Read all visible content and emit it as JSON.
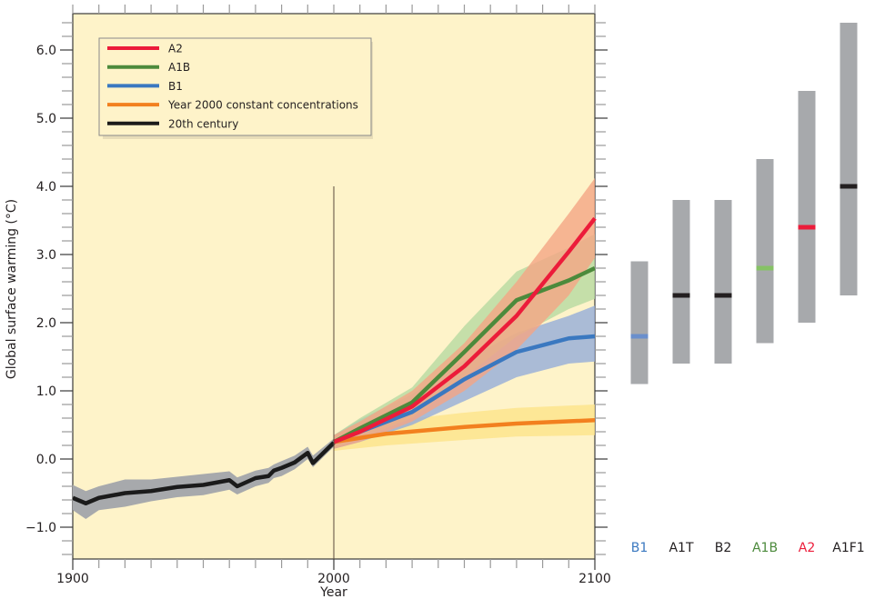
{
  "chart_data": [
    {
      "type": "line",
      "xlabel": "Year",
      "ylabel": "Global surface warming (°C)",
      "xlim": [
        1900,
        2100
      ],
      "ylim": [
        -1.47,
        6.53
      ],
      "x_ticks": [
        1900,
        2000,
        2100
      ],
      "x_tick_labels": [
        "1900",
        "2000",
        "2100"
      ],
      "y_ticks": [
        -1.0,
        0.0,
        1.0,
        2.0,
        3.0,
        4.0,
        5.0,
        6.0
      ],
      "y_tick_labels": [
        "−1.0",
        "0.0",
        "1.0",
        "2.0",
        "3.0",
        "4.0",
        "5.0",
        "6.0"
      ],
      "grid": false,
      "background": "#fef3c9",
      "legend_position": "top-left",
      "vertical_marker_year": 2000,
      "series": [
        {
          "name": "A2",
          "color": "#ec1c3a",
          "band_color": "#f4a585",
          "x": [
            2000,
            2010,
            2030,
            2050,
            2070,
            2090,
            2100
          ],
          "y": [
            0.25,
            0.4,
            0.77,
            1.36,
            2.1,
            3.04,
            3.53
          ],
          "lower": [
            0.15,
            0.25,
            0.55,
            1.0,
            1.6,
            2.4,
            2.95
          ],
          "upper": [
            0.35,
            0.55,
            1.0,
            1.7,
            2.6,
            3.6,
            4.12
          ]
        },
        {
          "name": "A1B",
          "color": "#4c8a3c",
          "band_color": "#b6d9a1",
          "x": [
            2000,
            2010,
            2030,
            2050,
            2070,
            2090,
            2100
          ],
          "y": [
            0.25,
            0.45,
            0.83,
            1.57,
            2.33,
            2.62,
            2.8
          ],
          "lower": [
            0.15,
            0.3,
            0.6,
            1.2,
            1.8,
            2.2,
            2.35
          ],
          "upper": [
            0.35,
            0.6,
            1.05,
            1.95,
            2.75,
            3.1,
            3.3
          ]
        },
        {
          "name": "B1",
          "color": "#3a78c0",
          "band_color": "#95acd9",
          "x": [
            2000,
            2010,
            2030,
            2050,
            2070,
            2090,
            2100
          ],
          "y": [
            0.25,
            0.4,
            0.69,
            1.17,
            1.57,
            1.77,
            1.8
          ],
          "lower": [
            0.15,
            0.25,
            0.5,
            0.85,
            1.2,
            1.4,
            1.43
          ],
          "upper": [
            0.35,
            0.58,
            0.95,
            1.45,
            1.85,
            2.1,
            2.25
          ]
        },
        {
          "name": "Year 2000 constant concentrations",
          "color": "#f2801f",
          "band_color": "#fde38a",
          "x": [
            2000,
            2020,
            2050,
            2070,
            2100
          ],
          "y": [
            0.25,
            0.37,
            0.47,
            0.52,
            0.57
          ],
          "lower": [
            0.12,
            0.2,
            0.28,
            0.33,
            0.35
          ],
          "upper": [
            0.35,
            0.55,
            0.68,
            0.75,
            0.8
          ]
        },
        {
          "name": "20th century",
          "color": "#1b1b1b",
          "band_color": "#a7a9ac",
          "x": [
            1900,
            1905,
            1910,
            1920,
            1930,
            1940,
            1950,
            1960,
            1963,
            1970,
            1975,
            1977,
            1980,
            1985,
            1990,
            1992,
            2000
          ],
          "y": [
            -0.57,
            -0.65,
            -0.57,
            -0.5,
            -0.47,
            -0.41,
            -0.38,
            -0.31,
            -0.4,
            -0.28,
            -0.25,
            -0.17,
            -0.13,
            -0.05,
            0.09,
            -0.06,
            0.24
          ],
          "lower": [
            -0.75,
            -0.88,
            -0.75,
            -0.7,
            -0.62,
            -0.56,
            -0.53,
            -0.45,
            -0.52,
            -0.4,
            -0.35,
            -0.28,
            -0.25,
            -0.15,
            0.0,
            -0.12,
            0.18
          ],
          "upper": [
            -0.38,
            -0.47,
            -0.4,
            -0.3,
            -0.3,
            -0.26,
            -0.22,
            -0.18,
            -0.27,
            -0.17,
            -0.13,
            -0.08,
            -0.03,
            0.05,
            0.18,
            0.05,
            0.3
          ]
        }
      ]
    },
    {
      "type": "bar",
      "subtype": "range",
      "categories": [
        "B1",
        "A1T",
        "B2",
        "A1B",
        "A2",
        "A1F1"
      ],
      "label_colors": [
        "#3a78c0",
        "#231f20",
        "#231f20",
        "#4c8a3c",
        "#ec1c3a",
        "#231f20"
      ],
      "low": [
        1.1,
        1.4,
        1.4,
        1.7,
        2.0,
        2.4
      ],
      "high": [
        2.9,
        3.8,
        3.8,
        4.4,
        5.4,
        6.4
      ],
      "best": [
        1.8,
        2.4,
        2.4,
        2.8,
        3.4,
        4.0
      ],
      "best_colors": [
        "#6a8fcc",
        "#231f20",
        "#231f20",
        "#86c265",
        "#ec1c3a",
        "#231f20"
      ],
      "bar_color": "#a7a9ac"
    }
  ]
}
